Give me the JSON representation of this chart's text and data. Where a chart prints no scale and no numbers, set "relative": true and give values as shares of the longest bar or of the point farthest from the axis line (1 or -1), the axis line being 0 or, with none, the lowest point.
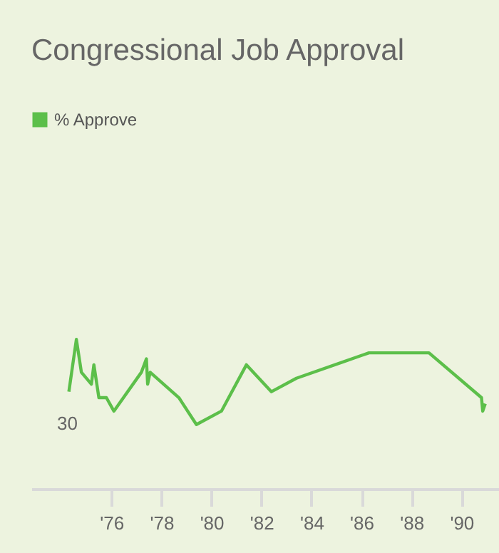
{
  "chart_data": {
    "type": "line",
    "title": "Congressional Job Approval",
    "relative": true,
    "x": [
      1974.3,
      1974.6,
      1974.8,
      1975.2,
      1975.3,
      1975.5,
      1975.8,
      1976.1,
      1977.2,
      1977.4,
      1977.45,
      1977.55,
      1978.7,
      1979.4,
      1980.4,
      1981.4,
      1982.4,
      1983.4,
      1986.3,
      1988.7,
      1990.8,
      1990.85,
      1990.95
    ],
    "series": [
      {
        "name": "% Approve",
        "color": "#5cbf4a",
        "values": [
          0.65,
          1,
          0.78,
          0.7,
          0.83,
          0.61,
          0.61,
          0.52,
          0.78,
          0.87,
          0.7,
          0.78,
          0.61,
          0.43,
          0.52,
          0.83,
          0.65,
          0.74,
          0.91,
          0.91,
          0.61,
          0.52,
          0.57
        ]
      }
    ],
    "xlim": [
      1972.8,
      1991.5
    ],
    "xticks": [
      {
        "value": 1976,
        "label": "'76"
      },
      {
        "value": 1978,
        "label": "'78"
      },
      {
        "value": 1980,
        "label": "'80"
      },
      {
        "value": 1982,
        "label": "'82"
      },
      {
        "value": 1984,
        "label": "'84"
      },
      {
        "value": 1986,
        "label": "'86"
      },
      {
        "value": 1988,
        "label": "'88"
      },
      {
        "value": 1990,
        "label": "'90"
      }
    ],
    "annotations": [
      "30"
    ],
    "legend": "top left",
    "marker": "none",
    "line_style": "solid"
  }
}
